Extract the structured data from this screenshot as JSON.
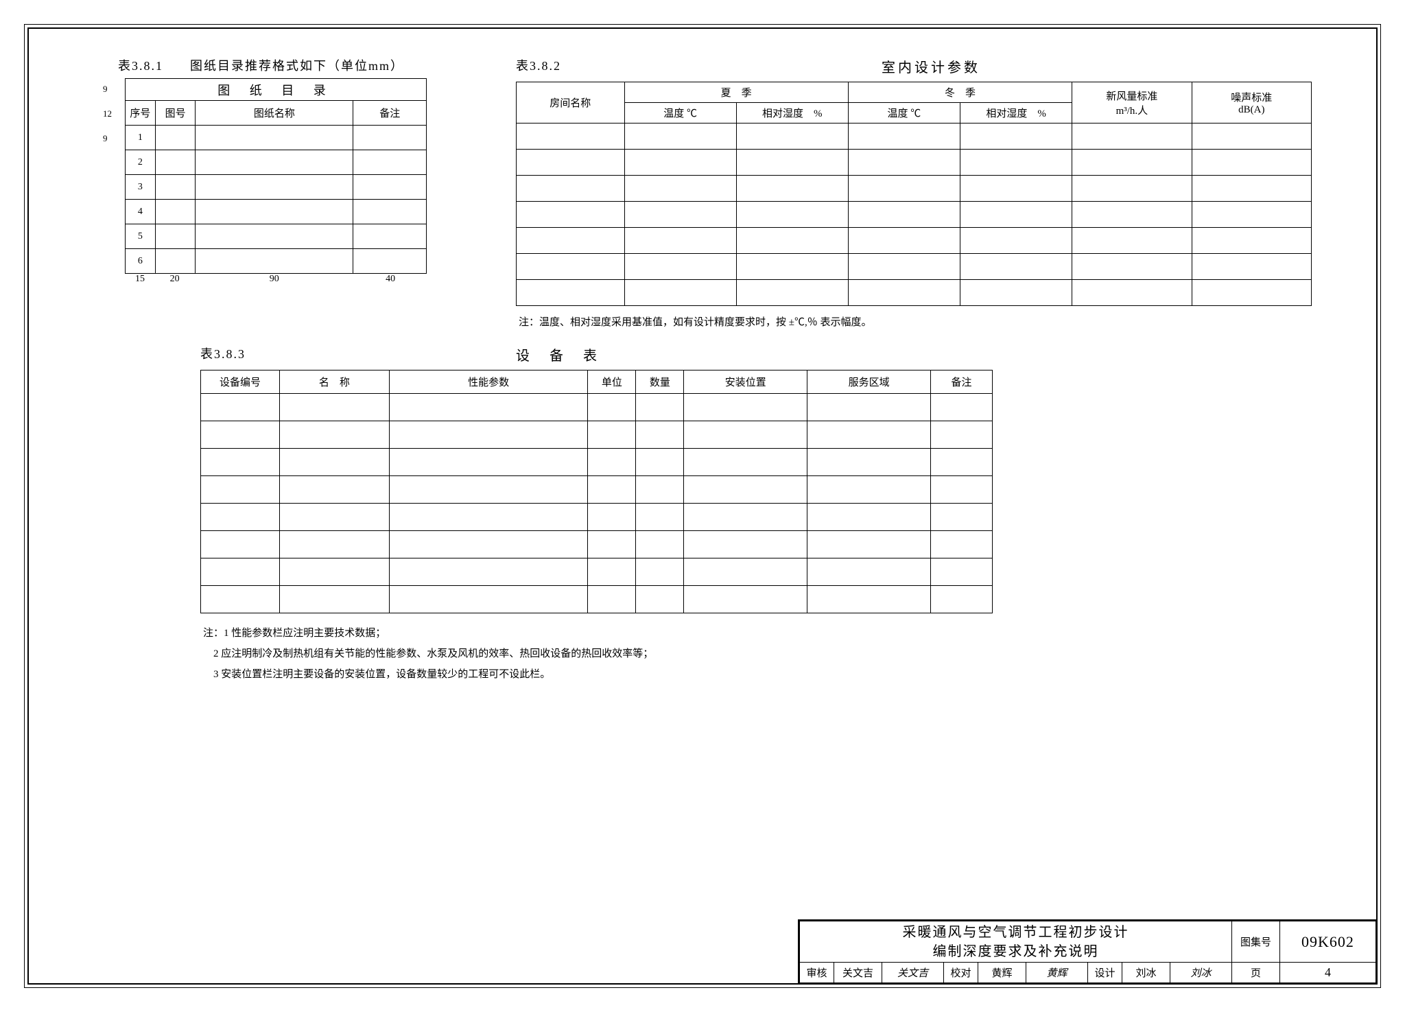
{
  "table381": {
    "label": "表3.8.1",
    "titleText": "图纸目录推荐格式如下（单位mm）",
    "headerBig": "图 纸 目 录",
    "cols": {
      "seq": "序号",
      "num": "图号",
      "name": "图纸名称",
      "note": "备注"
    },
    "rows": [
      "1",
      "2",
      "3",
      "4",
      "5",
      "6"
    ],
    "dimsBottom": {
      "d1": "15",
      "d2": "20",
      "d3": "90",
      "d4": "40"
    },
    "dimsSide": {
      "v1": "9",
      "v2": "12",
      "v3": "9"
    }
  },
  "table382": {
    "label": "表3.8.2",
    "titleText": "室内设计参数",
    "cols": {
      "room": "房间名称",
      "summer": "夏　季",
      "winter": "冬　季",
      "temp": "温度 ℃",
      "rh": "相对湿度　%",
      "freshAir": "新风量标准",
      "freshAirUnit": "m³/h.人",
      "noise": "噪声标准",
      "noiseUnit": "dB(A)"
    },
    "bodyRowCount": 7,
    "note": "注：温度、相对湿度采用基准值，如有设计精度要求时，按 ±℃,％ 表示幅度。"
  },
  "table383": {
    "label": "表3.8.3",
    "titleText": "设 备 表",
    "cols": {
      "id": "设备编号",
      "name": "名　称",
      "perf": "性能参数",
      "unit": "单位",
      "qty": "数量",
      "pos": "安装位置",
      "area": "服务区域",
      "note": "备注"
    },
    "bodyRowCount": 8,
    "notes": {
      "prefix": "注：",
      "n1": "1 性能参数栏应注明主要技术数据；",
      "n2": "2 应注明制冷及制热机组有关节能的性能参数、水泵及风机的效率、热回收设备的热回收效率等；",
      "n3": "3 安装位置栏注明主要设备的安装位置，设备数量较少的工程可不设此栏。"
    }
  },
  "titleblock": {
    "line1": "采暖通风与空气调节工程初步设计",
    "line2": "编制深度要求及补充说明",
    "atlasLabel": "图集号",
    "atlasNum": "09K602",
    "review": "审核",
    "reviewName": "关文吉",
    "reviewSig": "关文吉",
    "check": "校对",
    "checkName": "黄辉",
    "checkSig": "黄辉",
    "design": "设计",
    "designName": "刘冰",
    "designSig": "刘冰",
    "pageLabel": "页",
    "pageNum": "4"
  }
}
